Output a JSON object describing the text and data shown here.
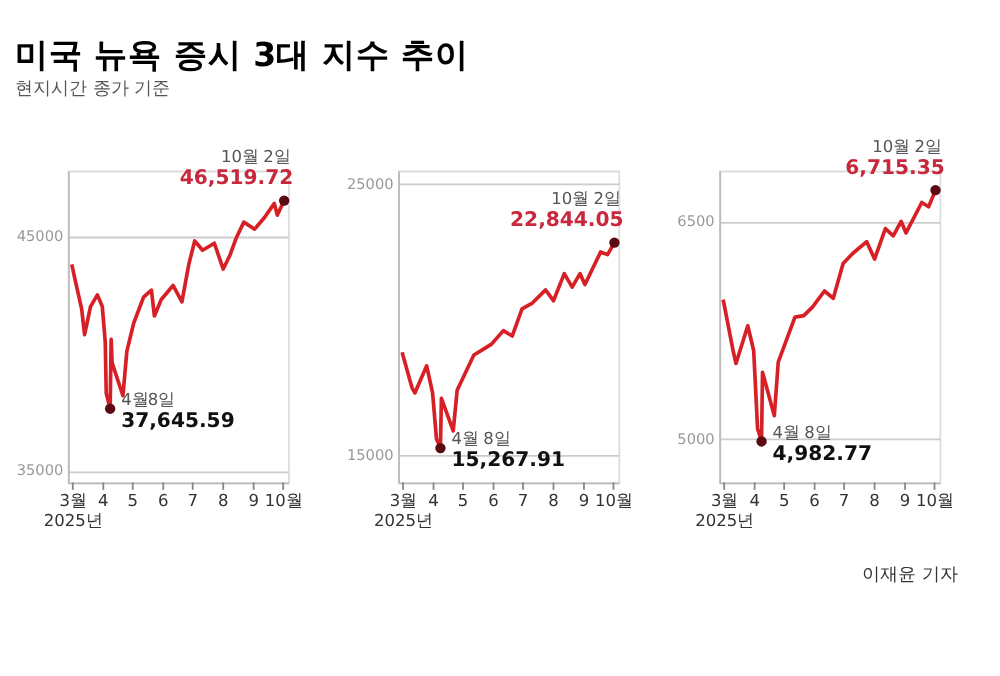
{
  "chart_data": [
    {
      "type": "line",
      "title": "미국 뉴욕 증시 3대 지수 추이",
      "subtitle": "현지시간 종가 기준",
      "xlim": [
        "2025-02-24",
        "2025-10-06"
      ],
      "xticks": [
        {
          "value": "2025-03-01",
          "label": "3월\n2025년"
        },
        {
          "value": "2025-04-01",
          "label": "4"
        },
        {
          "value": "2025-05-01",
          "label": "5"
        },
        {
          "value": "2025-06-01",
          "label": "6"
        },
        {
          "value": "2025-07-01",
          "label": "7"
        },
        {
          "value": "2025-08-01",
          "label": "8"
        },
        {
          "value": "2025-09-01",
          "label": "9"
        },
        {
          "value": "2025-10-01",
          "label": "10월"
        }
      ],
      "ylim": [
        34500,
        47800
      ],
      "yticks": [
        35000,
        45000
      ],
      "grid": "y",
      "marker": "none",
      "line_style": "solid",
      "x": [
        "2025-02-28",
        "2025-03-03",
        "2025-03-10",
        "2025-03-13",
        "2025-03-19",
        "2025-03-26",
        "2025-03-31",
        "2025-04-03",
        "2025-04-04",
        "2025-04-08",
        "2025-04-09",
        "2025-04-10",
        "2025-04-21",
        "2025-04-25",
        "2025-05-02",
        "2025-05-12",
        "2025-05-20",
        "2025-05-23",
        "2025-05-30",
        "2025-06-11",
        "2025-06-20",
        "2025-06-27",
        "2025-07-03",
        "2025-07-11",
        "2025-07-23",
        "2025-08-01",
        "2025-08-08",
        "2025-08-14",
        "2025-08-22",
        "2025-09-02",
        "2025-09-12",
        "2025-09-22",
        "2025-09-25",
        "2025-10-02"
      ],
      "series": [
        {
          "type": "scatter",
          "marker": "circle",
          "color": "#5a0a10",
          "x": [
            "2025-04-08",
            "2025-10-02"
          ],
          "values": [
            37645.59,
            46519.72
          ]
        },
        {
          "color": "#d71f26",
          "values": [
            43800,
            43200,
            41900,
            40800,
            42000,
            42500,
            42000,
            40500,
            38300,
            37645.59,
            40600,
            39600,
            38200,
            40100,
            41300,
            42400,
            42700,
            41600,
            42300,
            42900,
            42200,
            43800,
            44800,
            44400,
            44700,
            43600,
            44200,
            44900,
            45600,
            45300,
            45800,
            46400,
            45900,
            46519.72
          ]
        }
      ],
      "annotations": [
        {
          "text": "10월 2일",
          "x": "2025-10-02",
          "y": 46519.72
        },
        {
          "text": "46,519.72",
          "x": "2025-10-02",
          "y": 46519.72
        },
        {
          "text": "4월8일",
          "x": "2025-04-08",
          "y": 37645.59
        },
        {
          "text": "37,645.59",
          "x": "2025-04-08",
          "y": 37645.59
        }
      ]
    },
    {
      "type": "line",
      "xlim": [
        "2025-02-24",
        "2025-10-06"
      ],
      "xticks": [
        {
          "value": "2025-03-01",
          "label": "3월\n2025년"
        },
        {
          "value": "2025-04-01",
          "label": "4"
        },
        {
          "value": "2025-05-01",
          "label": "5"
        },
        {
          "value": "2025-06-01",
          "label": "6"
        },
        {
          "value": "2025-07-01",
          "label": "7"
        },
        {
          "value": "2025-08-01",
          "label": "8"
        },
        {
          "value": "2025-09-01",
          "label": "9"
        },
        {
          "value": "2025-10-01",
          "label": "10월"
        }
      ],
      "ylim": [
        14000,
        25500
      ],
      "yticks": [
        15000,
        25000
      ],
      "grid": "y",
      "marker": "none",
      "line_style": "solid",
      "x": [
        "2025-02-28",
        "2025-03-10",
        "2025-03-13",
        "2025-03-25",
        "2025-03-31",
        "2025-04-04",
        "2025-04-08",
        "2025-04-09",
        "2025-04-21",
        "2025-04-25",
        "2025-05-12",
        "2025-05-21",
        "2025-05-30",
        "2025-06-11",
        "2025-06-20",
        "2025-06-30",
        "2025-07-10",
        "2025-07-24",
        "2025-08-01",
        "2025-08-12",
        "2025-08-20",
        "2025-08-28",
        "2025-09-02",
        "2025-09-18",
        "2025-09-25",
        "2025-10-02"
      ],
      "series": [
        {
          "type": "scatter",
          "marker": "circle",
          "color": "#5a0a10",
          "x": [
            "2025-04-08",
            "2025-10-02"
          ],
          "values": [
            15267.91,
            22844.05
          ]
        },
        {
          "color": "#d71f26",
          "values": [
            18800,
            17500,
            17300,
            18300,
            17300,
            15600,
            15267.91,
            17100,
            15900,
            17400,
            18700,
            18900,
            19100,
            19600,
            19400,
            20400,
            20600,
            21100,
            20700,
            21700,
            21200,
            21700,
            21300,
            22500,
            22400,
            22844.05
          ]
        }
      ],
      "annotations": [
        {
          "text": "10월 2일",
          "x": "2025-10-02",
          "y": 22844.05
        },
        {
          "text": "22,844.05",
          "x": "2025-10-02",
          "y": 22844.05
        },
        {
          "text": "4월 8일",
          "x": "2025-04-08",
          "y": 15267.91
        },
        {
          "text": "15,267.91",
          "x": "2025-04-08",
          "y": 15267.91
        }
      ]
    },
    {
      "type": "line",
      "xlim": [
        "2025-02-24",
        "2025-10-06"
      ],
      "xticks": [
        {
          "value": "2025-03-01",
          "label": "3월\n2025년"
        },
        {
          "value": "2025-04-01",
          "label": "4"
        },
        {
          "value": "2025-05-01",
          "label": "5"
        },
        {
          "value": "2025-06-01",
          "label": "6"
        },
        {
          "value": "2025-07-01",
          "label": "7"
        },
        {
          "value": "2025-08-01",
          "label": "8"
        },
        {
          "value": "2025-09-01",
          "label": "9"
        },
        {
          "value": "2025-10-01",
          "label": "10월"
        }
      ],
      "ylim": [
        4700,
        6850
      ],
      "yticks": [
        5000,
        6500
      ],
      "grid": "y",
      "marker": "none",
      "line_style": "solid",
      "x": [
        "2025-02-28",
        "2025-03-10",
        "2025-03-13",
        "2025-03-25",
        "2025-03-31",
        "2025-04-04",
        "2025-04-08",
        "2025-04-09",
        "2025-04-21",
        "2025-04-25",
        "2025-05-12",
        "2025-05-21",
        "2025-05-30",
        "2025-06-11",
        "2025-06-20",
        "2025-06-30",
        "2025-07-10",
        "2025-07-24",
        "2025-08-01",
        "2025-08-12",
        "2025-08-20",
        "2025-08-28",
        "2025-09-02",
        "2025-09-18",
        "2025-09-25",
        "2025-10-02"
      ],
      "series": [
        {
          "type": "scatter",
          "marker": "circle",
          "color": "#5a0a10",
          "x": [
            "2025-04-08",
            "2025-10-02"
          ],
          "values": [
            4982.77,
            6715.35
          ]
        },
        {
          "color": "#d71f26",
          "values": [
            5960,
            5610,
            5520,
            5780,
            5610,
            5070,
            4982.77,
            5460,
            5160,
            5530,
            5840,
            5850,
            5910,
            6020,
            5970,
            6210,
            6280,
            6360,
            6240,
            6450,
            6400,
            6500,
            6420,
            6630,
            6600,
            6715.35
          ]
        }
      ],
      "annotations": [
        {
          "text": "10월 2일",
          "x": "2025-10-02",
          "y": 6715.35
        },
        {
          "text": "6,715.35",
          "x": "2025-10-02",
          "y": 6715.35
        },
        {
          "text": "4월 8일",
          "x": "2025-04-08",
          "y": 4982.77
        },
        {
          "text": "4,982.77",
          "x": "2025-04-08",
          "y": 4982.77
        },
        "이재윤 기자"
      ]
    }
  ]
}
